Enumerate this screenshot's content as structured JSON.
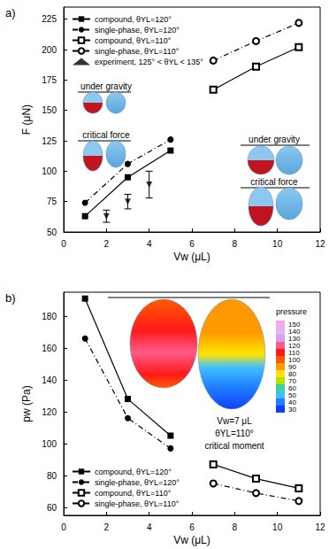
{
  "chart_data": [
    {
      "type": "line",
      "label": "a)",
      "x_label": "Vw (μL)",
      "y_label": "F (μN)",
      "xlim": [
        0,
        12
      ],
      "xticks": [
        0,
        2,
        4,
        6,
        8,
        10,
        12
      ],
      "ylim": [
        50,
        235
      ],
      "yticks": [
        50,
        75,
        100,
        125,
        150,
        175,
        200,
        225
      ],
      "grid": false,
      "legend": "upper left",
      "series": [
        {
          "name": "compound, θYL=120°",
          "color": "#000000",
          "marker": "square",
          "line_style": "solid",
          "x": [
            1,
            3,
            5
          ],
          "values": [
            63,
            95,
            117
          ]
        },
        {
          "name": "single-phase, θYL=120°",
          "color": "#000000",
          "marker": "circle",
          "line_style": "dashdot",
          "x": [
            1,
            3,
            5
          ],
          "values": [
            74,
            106,
            126
          ]
        },
        {
          "name": "compound, θYL=110°",
          "color": "#000000",
          "marker": "open_square",
          "line_style": "solid",
          "x": [
            7,
            9,
            11
          ],
          "values": [
            167,
            186,
            202
          ]
        },
        {
          "name": "single-phase, θYL=110°",
          "color": "#000000",
          "marker": "open_circle",
          "line_style": "dashdot",
          "x": [
            7,
            9,
            11
          ],
          "values": [
            191,
            207,
            222
          ]
        },
        {
          "name": "experiment, 125° < θYL < 135°",
          "type": "scatter",
          "color": "#000000",
          "marker": "triangle_down",
          "x": [
            2,
            3,
            4
          ],
          "values": [
            63,
            75,
            89
          ],
          "yerr": [
            5,
            6,
            11
          ]
        }
      ],
      "annotations": [
        "under gravity",
        "critical force",
        "under gravity",
        "critical force"
      ]
    },
    {
      "type": "line",
      "label": "b)",
      "x_label": "Vw (μL)",
      "y_label": "pw (Pa)",
      "xlim": [
        0,
        12
      ],
      "xticks": [
        0,
        2,
        4,
        6,
        8,
        10,
        12
      ],
      "ylim": [
        55,
        195
      ],
      "yticks": [
        60,
        80,
        100,
        120,
        140,
        160,
        180
      ],
      "grid": false,
      "legend": "lower left",
      "series": [
        {
          "name": "compound, θYL=120°",
          "color": "#000000",
          "marker": "square",
          "line_style": "solid",
          "x": [
            1,
            3,
            5
          ],
          "values": [
            191,
            128,
            105
          ]
        },
        {
          "name": "single-phase, θYL=120°",
          "color": "#000000",
          "marker": "circle",
          "line_style": "dashdot",
          "x": [
            1,
            3,
            5
          ],
          "values": [
            166,
            116,
            97
          ]
        },
        {
          "name": "compound, θYL=110°",
          "color": "#000000",
          "marker": "open_square",
          "line_style": "solid",
          "x": [
            7,
            9,
            11
          ],
          "values": [
            87,
            78,
            72
          ]
        },
        {
          "name": "single-phase, θYL=110°",
          "color": "#000000",
          "marker": "open_circle",
          "line_style": "dashdot",
          "x": [
            7,
            9,
            11
          ],
          "values": [
            75,
            69,
            64
          ]
        }
      ],
      "annotations": [
        "Vw=7 μL",
        "θYL=110°",
        "critical moment"
      ],
      "colorbar": {
        "title": "pressure",
        "ticks": [
          150,
          140,
          130,
          120,
          110,
          100,
          90,
          80,
          70,
          60,
          50,
          40,
          30
        ],
        "colors": [
          "#f7a6f0",
          "#e6b3f2",
          "#d1a3f0",
          "#ff5a8a",
          "#ff1a1a",
          "#ff5a00",
          "#ff9900",
          "#ffe600",
          "#b8e000",
          "#40d0a0",
          "#40c0ff",
          "#2080ff",
          "#1040ff"
        ]
      }
    }
  ]
}
